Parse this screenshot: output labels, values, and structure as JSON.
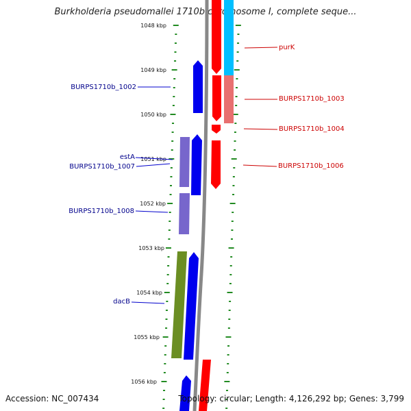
{
  "title": "Burkholderia pseudomallei 1710b chromosome I, complete seque...",
  "footer": {
    "accession": "Accession: NC_007434",
    "summary": "Topology: circular; Length: 4,126,292 bp; Genes: 3,799"
  },
  "ticks": [
    "1048 kbp",
    "1049 kbp",
    "1050 kbp",
    "1051 kbp",
    "1052 kbp",
    "1053 kbp",
    "1054 kbp",
    "1055 kbp",
    "1056 kbp"
  ],
  "labels_left": [
    "BURPS1710b_1002",
    "estA",
    "BURPS1710b_1007",
    "BURPS1710b_1008",
    "dacB"
  ],
  "labels_right": [
    "purK",
    "BURPS1710b_1003",
    "BURPS1710b_1004",
    "BURPS1710b_1006"
  ],
  "colors": {
    "forward": "#0000ee",
    "reverse": "#ff0000",
    "rna_like": "#7766cc",
    "olive": "#6b8e23",
    "cyan": "#00bfff",
    "pink": "#e87070",
    "tick": "#228b22",
    "backbone": "#888888"
  }
}
